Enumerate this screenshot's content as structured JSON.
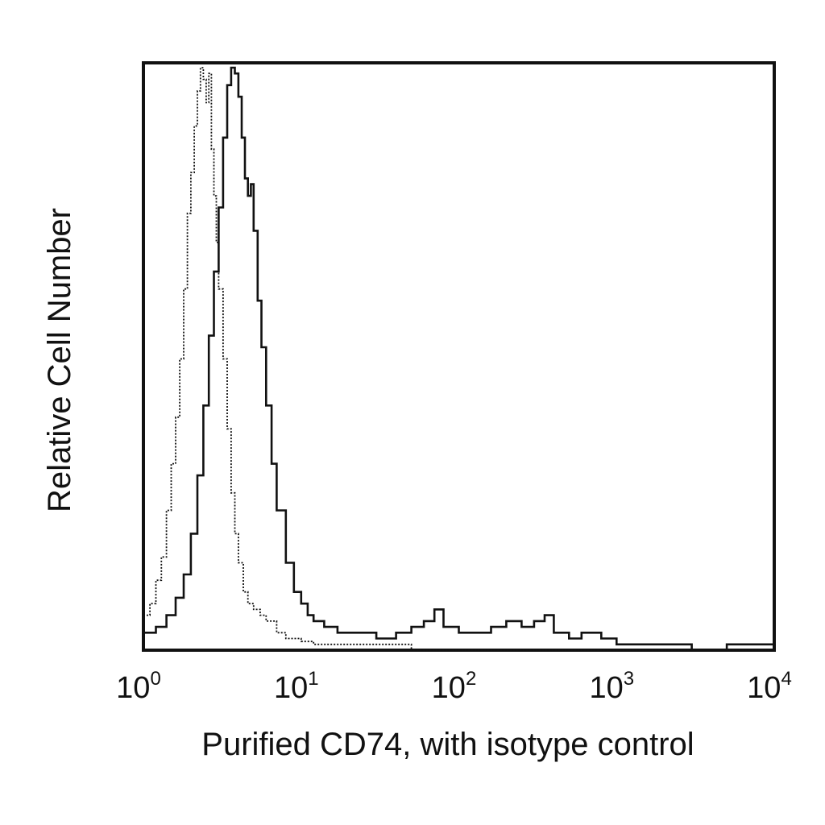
{
  "chart_data": {
    "type": "line",
    "chart_kind": "flow cytometry histogram",
    "title": "",
    "xlabel": "Purified CD74, with isotype control",
    "ylabel": "Relative Cell Number",
    "x_scale": "log",
    "xlim": [
      1,
      10000
    ],
    "ylim": [
      0,
      1
    ],
    "grid": false,
    "legend": "none",
    "x_ticks": [
      {
        "base": "10",
        "exp": "0"
      },
      {
        "base": "10",
        "exp": "1"
      },
      {
        "base": "10",
        "exp": "2"
      },
      {
        "base": "10",
        "exp": "3"
      },
      {
        "base": "10",
        "exp": "4"
      }
    ],
    "series": [
      {
        "style": "dotted",
        "color": "#111111",
        "x": [
          1.0,
          1.1,
          1.2,
          1.3,
          1.4,
          1.5,
          1.6,
          1.7,
          1.8,
          1.9,
          2.0,
          2.1,
          2.2,
          2.3,
          2.4,
          2.5,
          2.6,
          2.7,
          2.8,
          2.9,
          3.0,
          3.2,
          3.4,
          3.6,
          3.8,
          4.0,
          4.3,
          4.6,
          5.0,
          5.5,
          6.0,
          7.0,
          8.0,
          10.0,
          12.0,
          15.0,
          20.0,
          30.0,
          50.0,
          100.0,
          200.0,
          500.0,
          1000.0,
          3000.0,
          10000.0
        ],
        "y": [
          0.06,
          0.08,
          0.12,
          0.16,
          0.24,
          0.32,
          0.4,
          0.5,
          0.62,
          0.75,
          0.82,
          0.9,
          0.96,
          1.0,
          0.98,
          0.94,
          0.99,
          0.86,
          0.78,
          0.7,
          0.62,
          0.5,
          0.38,
          0.27,
          0.2,
          0.15,
          0.1,
          0.08,
          0.07,
          0.06,
          0.05,
          0.03,
          0.02,
          0.015,
          0.01,
          0.01,
          0.01,
          0.01,
          0.0,
          0.0,
          0.0,
          0.0,
          0.0,
          0.0,
          0.0
        ]
      },
      {
        "style": "solid",
        "color": "#111111",
        "x": [
          1.0,
          1.2,
          1.4,
          1.6,
          1.8,
          2.0,
          2.2,
          2.4,
          2.6,
          2.8,
          3.0,
          3.2,
          3.4,
          3.6,
          3.8,
          4.0,
          4.2,
          4.4,
          4.6,
          4.8,
          5.0,
          5.3,
          5.6,
          6.0,
          6.5,
          7.0,
          8.0,
          9.0,
          10.0,
          11.0,
          12.0,
          14.0,
          17.0,
          20.0,
          25.0,
          30.0,
          40.0,
          50.0,
          60.0,
          70.0,
          80.0,
          100.0,
          130.0,
          160.0,
          200.0,
          250.0,
          300.0,
          350.0,
          400.0,
          500.0,
          600.0,
          800.0,
          1000.0,
          1500.0,
          2000.0,
          3000.0,
          5000.0,
          10000.0
        ],
        "y": [
          0.03,
          0.04,
          0.06,
          0.09,
          0.13,
          0.2,
          0.3,
          0.42,
          0.54,
          0.65,
          0.76,
          0.88,
          0.97,
          1.0,
          0.99,
          0.95,
          0.88,
          0.81,
          0.78,
          0.8,
          0.72,
          0.6,
          0.52,
          0.42,
          0.32,
          0.24,
          0.15,
          0.1,
          0.08,
          0.06,
          0.05,
          0.04,
          0.03,
          0.03,
          0.03,
          0.02,
          0.03,
          0.04,
          0.05,
          0.07,
          0.04,
          0.03,
          0.03,
          0.04,
          0.05,
          0.04,
          0.05,
          0.06,
          0.03,
          0.02,
          0.03,
          0.02,
          0.01,
          0.01,
          0.01,
          0.0,
          0.01,
          0.0
        ]
      }
    ]
  }
}
